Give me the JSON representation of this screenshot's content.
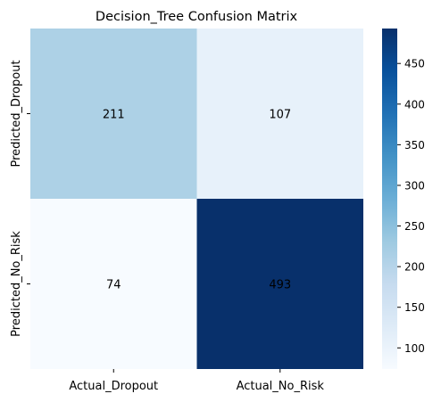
{
  "chart_data": {
    "type": "heatmap",
    "title": "Decision_Tree Confusion Matrix",
    "xlabel": "",
    "ylabel": "",
    "x_categories": [
      "Actual_Dropout",
      "Actual_No_Risk"
    ],
    "y_categories": [
      "Predicted_Dropout",
      "Predicted_No_Risk"
    ],
    "values": [
      [
        211,
        107
      ],
      [
        74,
        493
      ]
    ],
    "colormap": "Blues",
    "colorbar": {
      "range": [
        74,
        493
      ],
      "ticks": [
        100,
        150,
        200,
        250,
        300,
        350,
        400,
        450
      ]
    },
    "grid": false
  }
}
